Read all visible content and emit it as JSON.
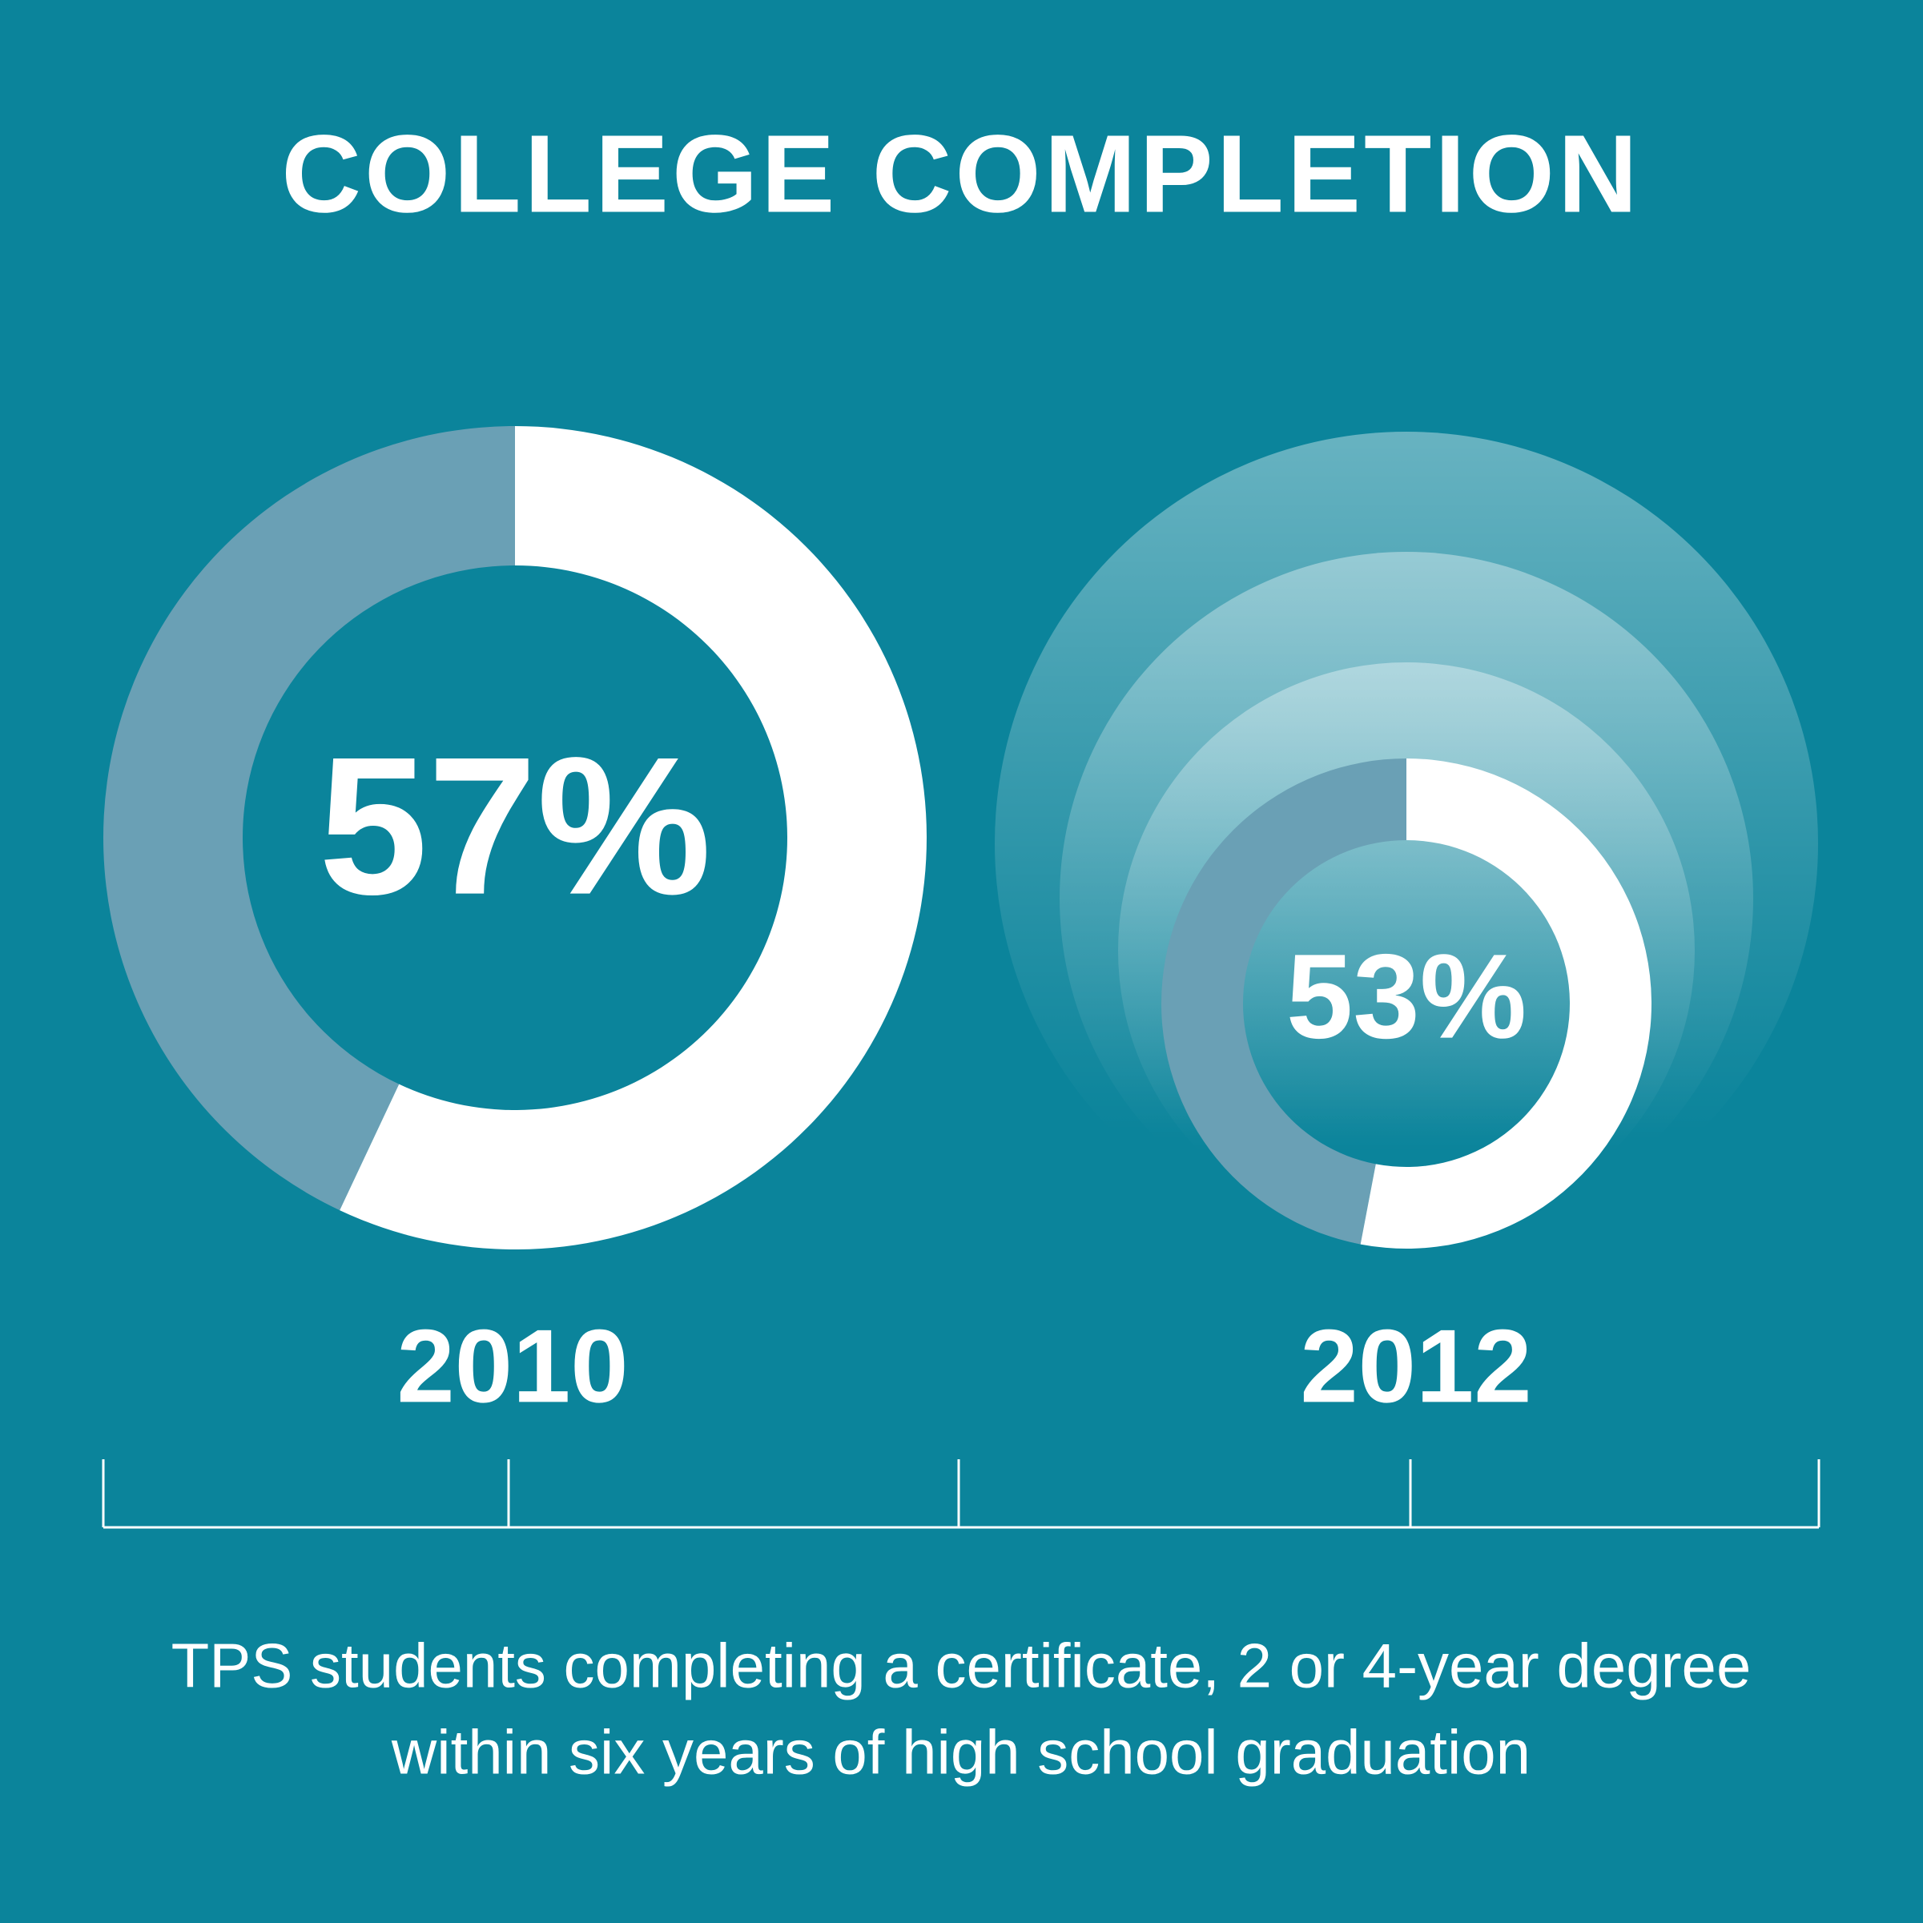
{
  "chart_data": {
    "type": "donut",
    "title": "COLLEGE COMPLETION",
    "categories": [
      "2010",
      "2012"
    ],
    "values": [
      57,
      53
    ],
    "value_labels": [
      "57%",
      "53%"
    ],
    "color": "#ffffff",
    "remainder_color": "#6aa0b5",
    "caption": [
      "TPS students completing a certificate, 2 or 4-year degree",
      "within six years of high school graduation"
    ]
  }
}
